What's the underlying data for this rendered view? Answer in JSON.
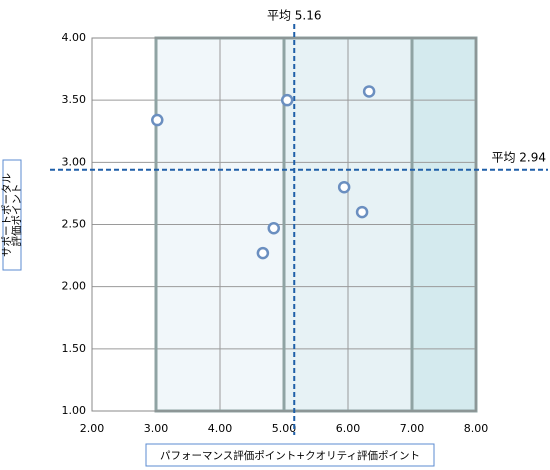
{
  "chart_data": {
    "type": "scatter",
    "x_label": "パフォーマンス評価ポイント+クオリティ評価ポイント",
    "y_label": [
      "サポートポータル",
      "評価ポイント"
    ],
    "series": [
      {
        "color": "#6b8fc0",
        "x": [
          3.02,
          5.05,
          6.33,
          5.94,
          6.22,
          4.84,
          4.67
        ],
        "values": [
          3.34,
          3.5,
          3.57,
          2.8,
          2.6,
          2.47,
          2.27
        ]
      }
    ],
    "xlim": [
      2,
      8
    ],
    "ylim": [
      1,
      4
    ],
    "xticks": [
      {
        "value": 2,
        "label": "2.00"
      },
      {
        "value": 3,
        "label": "3.00"
      },
      {
        "value": 4,
        "label": "4.00"
      },
      {
        "value": 5,
        "label": "5.00"
      },
      {
        "value": 6,
        "label": "6.00"
      },
      {
        "value": 7,
        "label": "7.00"
      },
      {
        "value": 8,
        "label": "8.00"
      }
    ],
    "yticks": [
      {
        "value": 1,
        "label": "1.00"
      },
      {
        "value": 1.5,
        "label": "1.50"
      },
      {
        "value": 2,
        "label": "2.00"
      },
      {
        "value": 2.5,
        "label": "2.50"
      },
      {
        "value": 3,
        "label": "3.00"
      },
      {
        "value": 3.5,
        "label": "3.50"
      },
      {
        "value": 4,
        "label": "4.00"
      }
    ],
    "grid": true,
    "bands": [
      {
        "xrange": [
          3,
          5
        ],
        "color": "#f1f7fa"
      },
      {
        "xrange": [
          5,
          7
        ],
        "color": "#e7f2f5"
      },
      {
        "xrange": [
          7,
          8
        ],
        "color": "#d4eaee"
      }
    ],
    "mean_lines": [
      {
        "axis": "x",
        "value": 5.16,
        "label": "平均 5.16"
      },
      {
        "axis": "y",
        "value": 2.94,
        "label": "平均 2.94"
      }
    ],
    "mean_color": "#1f5fa8"
  }
}
